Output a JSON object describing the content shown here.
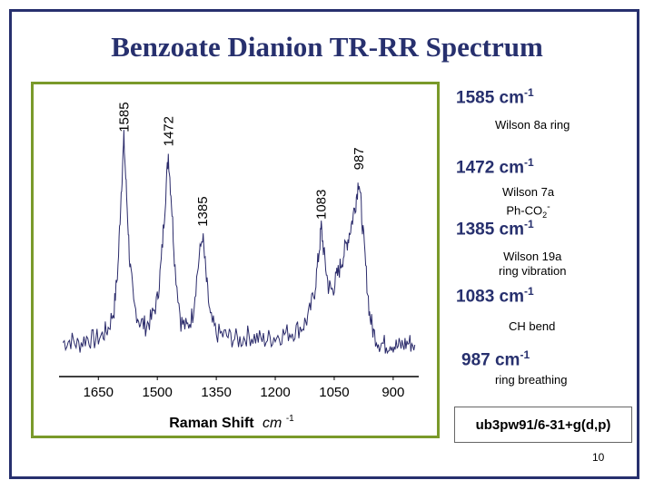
{
  "slide": {
    "title": "Benzoate Dianion TR-RR Spectrum",
    "page_number": "10",
    "method_label": "ub3pw91/6-31+g(d,p)",
    "accent_color": "#27306e",
    "frame_color": "#7a9a2a"
  },
  "annotations": [
    {
      "value": "1585 cm",
      "exp": "-1",
      "desc_lines": [
        "Wilson 8a ring"
      ]
    },
    {
      "value": "1472 cm",
      "exp": "-1",
      "desc_lines": [
        "Wilson 7a",
        "Ph-CO"
      ],
      "desc_sub": "2",
      "desc_sup": "-"
    },
    {
      "value": "1385 cm",
      "exp": "-1",
      "desc_lines": [
        "Wilson 19a",
        "ring vibration"
      ]
    },
    {
      "value": "1083 cm",
      "exp": "-1",
      "desc_lines": [
        "CH bend"
      ]
    },
    {
      "value": "987 cm",
      "exp": "-1",
      "desc_lines": [
        "ring breathing"
      ]
    }
  ],
  "chart_data": {
    "type": "line",
    "xlabel_main": "Raman Shift",
    "xlabel_unit": "cm",
    "xlabel_exp": "-1",
    "x_reversed": true,
    "xlim": [
      1750,
      835
    ],
    "ylim": [
      0,
      1
    ],
    "xticks": [
      1650,
      1500,
      1350,
      1200,
      1050,
      900
    ],
    "grid": false,
    "line_color": "#2a2a6a",
    "peak_labels": [
      "1585",
      "1472",
      "1385",
      "1083",
      "987"
    ],
    "peaks": [
      {
        "x": 1585,
        "y": 0.92
      },
      {
        "x": 1472,
        "y": 0.86
      },
      {
        "x": 1385,
        "y": 0.52
      },
      {
        "x": 1083,
        "y": 0.55
      },
      {
        "x": 987,
        "y": 0.76
      }
    ],
    "series": [
      {
        "x": [
          1740,
          1720,
          1700,
          1680,
          1660,
          1640,
          1625,
          1610,
          1600,
          1592,
          1585,
          1578,
          1570,
          1560,
          1545,
          1530,
          1515,
          1500,
          1490,
          1480,
          1472,
          1464,
          1455,
          1440,
          1425,
          1410,
          1398,
          1385,
          1375,
          1365,
          1350,
          1330,
          1310,
          1290,
          1270,
          1250,
          1230,
          1210,
          1190,
          1170,
          1150,
          1130,
          1115,
          1100,
          1090,
          1083,
          1075,
          1065,
          1055,
          1045,
          1035,
          1025,
          1015,
          1005,
          995,
          987,
          980,
          970,
          960,
          950,
          935,
          920,
          905,
          890,
          875,
          860,
          845
        ],
        "y": [
          0.06,
          0.07,
          0.05,
          0.08,
          0.07,
          0.09,
          0.12,
          0.2,
          0.38,
          0.7,
          0.92,
          0.68,
          0.4,
          0.22,
          0.15,
          0.13,
          0.16,
          0.24,
          0.4,
          0.66,
          0.86,
          0.66,
          0.38,
          0.15,
          0.12,
          0.18,
          0.36,
          0.52,
          0.32,
          0.16,
          0.1,
          0.09,
          0.08,
          0.07,
          0.09,
          0.08,
          0.07,
          0.08,
          0.09,
          0.1,
          0.11,
          0.13,
          0.17,
          0.28,
          0.42,
          0.55,
          0.42,
          0.3,
          0.28,
          0.33,
          0.38,
          0.44,
          0.5,
          0.57,
          0.66,
          0.76,
          0.6,
          0.38,
          0.18,
          0.1,
          0.06,
          0.05,
          0.06,
          0.04,
          0.05,
          0.06,
          0.05
        ]
      }
    ]
  }
}
